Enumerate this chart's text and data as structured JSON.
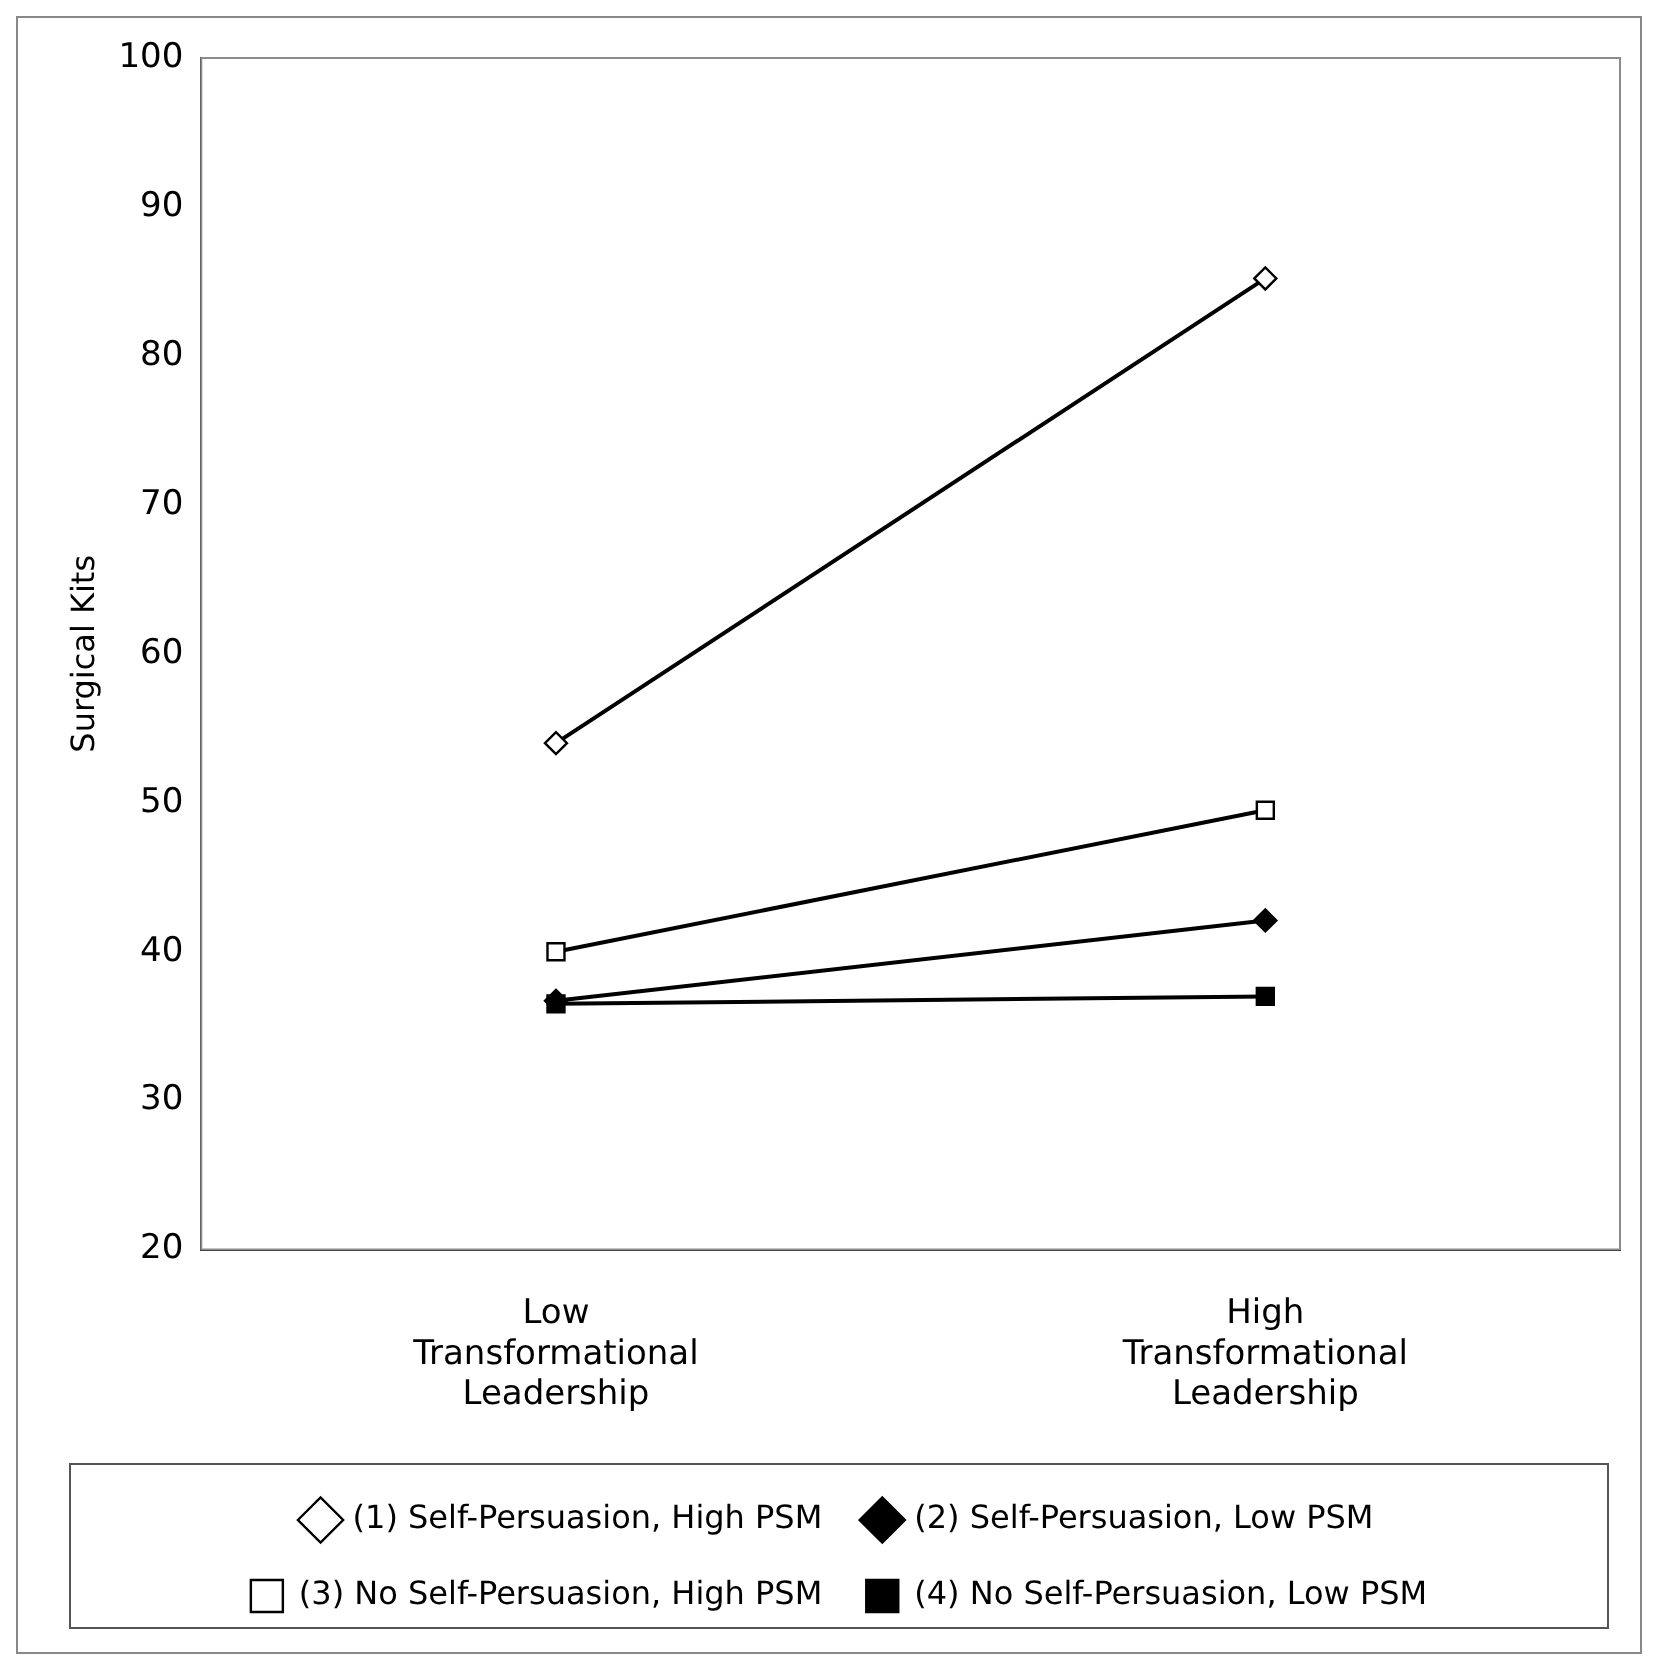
{
  "chart_data": {
    "type": "line",
    "ylabel": "Surgical Kits",
    "categories": [
      "Low Transformational Leadership",
      "High Transformational Leadership"
    ],
    "ylim": [
      20,
      100
    ],
    "yticks": [
      20,
      30,
      40,
      50,
      60,
      70,
      80,
      90,
      100
    ],
    "grid": false,
    "legend": "bottom",
    "line_style": "solid",
    "series": [
      {
        "name": "(1) Self-Persuasion, High PSM",
        "color": "#000000",
        "marker": "diamond",
        "values": [
          54,
          85.2
        ]
      },
      {
        "name": "(2) Self-Persuasion, Low PSM",
        "color": "#000000",
        "marker": "diamond",
        "values": [
          36.7,
          42.1
        ]
      },
      {
        "name": "(3) No Self-Persuasion, High PSM",
        "color": "#000000",
        "marker": "square",
        "values": [
          40,
          49.5
        ]
      },
      {
        "name": "(4) No Self-Persuasion, Low PSM",
        "color": "#000000",
        "marker": "square",
        "values": [
          36.5,
          37
        ]
      }
    ]
  }
}
